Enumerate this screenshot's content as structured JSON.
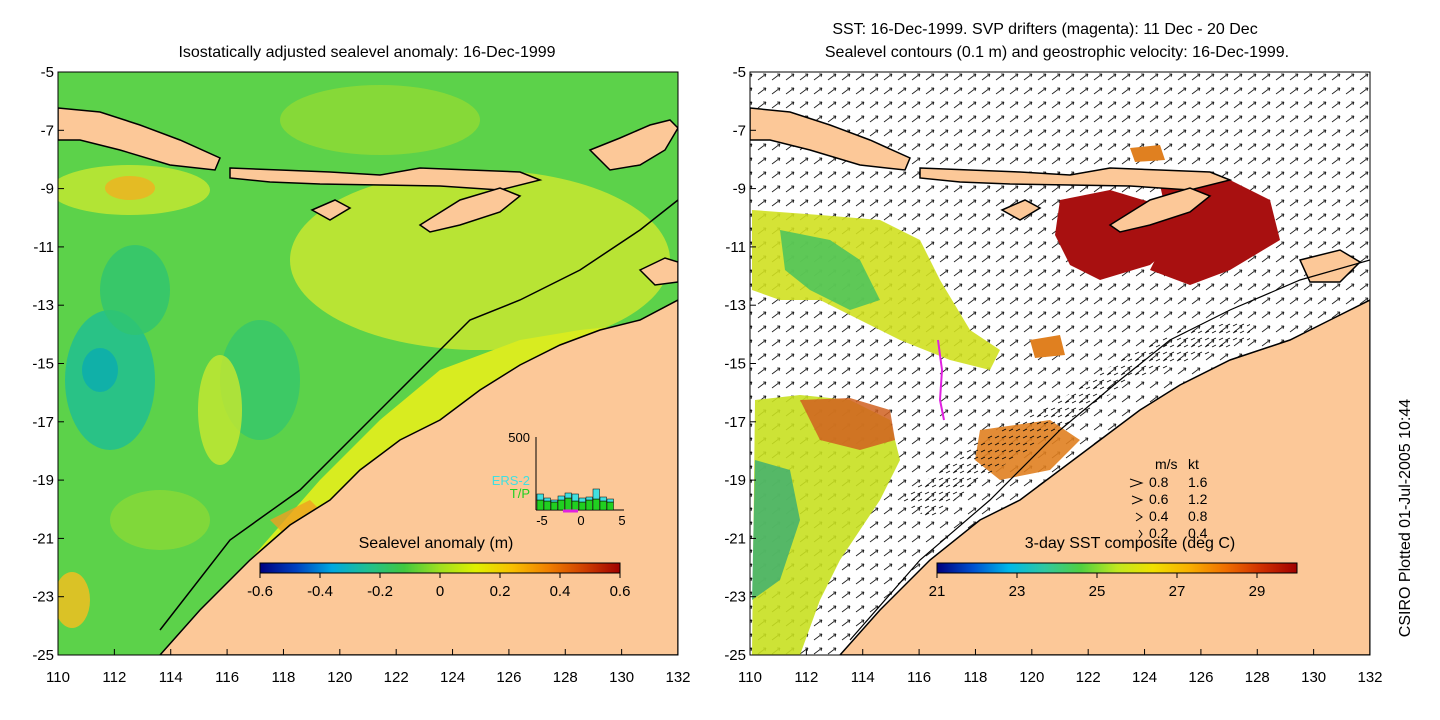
{
  "left_panel": {
    "title": "Isostatically adjusted sealevel anomaly: 16-Dec-1999",
    "colorbar_label": "Sealevel anomaly (m)",
    "colorbar_ticks": [
      "-0.6",
      "-0.4",
      "-0.2",
      "0",
      "0.2",
      "0.4",
      "0.6"
    ],
    "colorbar_colors": [
      "#00007f",
      "#0040c0",
      "#00a8e0",
      "#20c090",
      "#40c840",
      "#a0e020",
      "#e0f000",
      "#f8c000",
      "#f08000",
      "#d04000",
      "#a00000"
    ],
    "inset": {
      "ymax_label": "500",
      "series": [
        "ERS-2",
        "T/P"
      ],
      "series_colors": [
        "#40e0e0",
        "#20d020"
      ],
      "x_ticks": [
        "-5",
        "0",
        "5"
      ]
    }
  },
  "right_panel": {
    "title_line1": "SST: 16-Dec-1999. SVP drifters (magenta): 11 Dec - 20 Dec",
    "title_line2": "Sealevel contours (0.1 m) and geostrophic velocity: 16-Dec-1999.",
    "colorbar_label": "3-day SST composite (deg C)",
    "colorbar_ticks": [
      "21",
      "23",
      "25",
      "27",
      "29"
    ],
    "colorbar_colors": [
      "#00007f",
      "#0050d0",
      "#00b8e8",
      "#30c8a0",
      "#50d040",
      "#c0e820",
      "#f0e000",
      "#f8b000",
      "#f07000",
      "#d03000",
      "#a00000"
    ],
    "speed_legend": {
      "header_ms": "m/s",
      "header_kt": "kt",
      "rows": [
        {
          "ms": "0.8",
          "kt": "1.6"
        },
        {
          "ms": "0.6",
          "kt": "1.2"
        },
        {
          "ms": "0.4",
          "kt": "0.8"
        },
        {
          "ms": "0.2",
          "kt": "0.4"
        }
      ]
    }
  },
  "axes": {
    "y_ticks": [
      "-5",
      "-7",
      "-9",
      "-11",
      "-13",
      "-15",
      "-17",
      "-19",
      "-21",
      "-23",
      "-25"
    ],
    "x_ticks": [
      "110",
      "112",
      "114",
      "116",
      "118",
      "120",
      "122",
      "124",
      "126",
      "128",
      "130",
      "132"
    ]
  },
  "credit": "CSIRO Plotted 01-Jul-2005 10:44",
  "colors": {
    "land": "#fcc898",
    "sea_green": "#5cd24a",
    "sea_yellow": "#d8ec20",
    "sst_high": "#a81010",
    "sst_mid": "#e07820"
  }
}
